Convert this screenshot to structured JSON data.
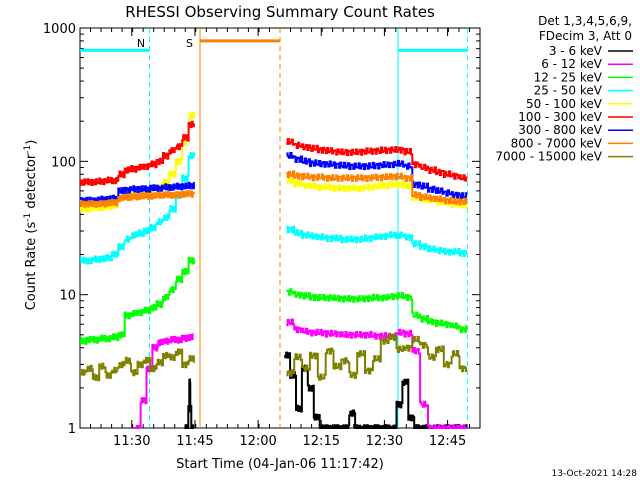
{
  "chart_data": {
    "type": "line",
    "title": "RHESSI Observing Summary Count Rates",
    "ylabel_main": "Count Rate (s",
    "ylabel_sup1": "-1",
    "ylabel_mid": " detector",
    "ylabel_sup2": "-1",
    "ylabel_end": ")",
    "xlabel": "Start Time (04-Jan-06 11:17:42)",
    "yscale": "log",
    "ylim": [
      1,
      1000
    ],
    "xlim_minutes": [
      0,
      95
    ],
    "x_ticks": [
      {
        "label": "11:30",
        "m": 12.3
      },
      {
        "label": "11:45",
        "m": 27.3
      },
      {
        "label": "12:00",
        "m": 42.3
      },
      {
        "label": "12:15",
        "m": 57.3
      },
      {
        "label": "12:30",
        "m": 72.3
      },
      {
        "label": "12:45",
        "m": 87.3
      }
    ],
    "y_ticks": [
      {
        "label": "1",
        "v": 1
      },
      {
        "label": "10",
        "v": 10
      },
      {
        "label": "100",
        "v": 100
      },
      {
        "label": "1000",
        "v": 1000
      }
    ],
    "legend_header": [
      "Det 1,3,4,5,6,9,",
      "FDecim 3, Att 0"
    ],
    "legend_position": "right",
    "series": [
      {
        "name": "3 - 6 keV",
        "color": "#000000",
        "segments": [
          {
            "start": 25.0,
            "end": 26.9,
            "values": [
              1,
              1,
              1,
              1.4,
              2.2,
              1.4,
              1,
              1
            ]
          },
          {
            "start": 48.5,
            "end": 92.0,
            "values": [
              3.5,
              2.5,
              1.4,
              2.8,
              2.0,
              1.2,
              1,
              1,
              1,
              1,
              1,
              1.3,
              1,
              1,
              1,
              1,
              1,
              1,
              1,
              1.5,
              2.2,
              1.2,
              1,
              1,
              1,
              1,
              1,
              1,
              1,
              1,
              1
            ]
          }
        ]
      },
      {
        "name": "6 - 12 keV",
        "color": "#ff00ff",
        "segments": [
          {
            "start": 13.0,
            "end": 27.0,
            "values": [
              1,
              1.6,
              2.8,
              4.0,
              4.4,
              4.5,
              4.6,
              4.6,
              4.7,
              4.8
            ]
          },
          {
            "start": 49.0,
            "end": 92.0,
            "values": [
              6.2,
              5.5,
              5.3,
              5.2,
              5.2,
              5.1,
              5.1,
              5.0,
              5.0,
              5.0,
              5.0,
              4.9,
              4.9,
              4.9,
              5.2,
              5.1,
              3.8,
              1.5,
              1,
              1,
              1,
              1,
              1
            ]
          }
        ]
      },
      {
        "name": "12 - 25 keV",
        "color": "#00ff00",
        "segments": [
          {
            "start": 0,
            "end": 27.3,
            "values": [
              4.5,
              4.6,
              4.6,
              4.7,
              4.7,
              4.8,
              5.0,
              7.0,
              7.2,
              7.4,
              7.6,
              8.0,
              8.5,
              9.5,
              11,
              13,
              15,
              18
            ]
          },
          {
            "start": 49.0,
            "end": 92.0,
            "values": [
              10.5,
              10.0,
              9.8,
              9.6,
              9.5,
              9.5,
              9.4,
              9.3,
              9.3,
              9.3,
              9.4,
              9.5,
              9.5,
              9.7,
              9.8,
              9.6,
              7.0,
              6.6,
              6.3,
              6.1,
              6.0,
              5.8,
              5.5
            ]
          }
        ]
      },
      {
        "name": "25 - 50 keV",
        "color": "#00ffff",
        "segments": [
          {
            "start": 0,
            "end": 27.3,
            "values": [
              18,
              18,
              18.5,
              18.5,
              19,
              20,
              23,
              26,
              28,
              29,
              30,
              32,
              35,
              38,
              44,
              55,
              75,
              110
            ]
          },
          {
            "start": 49.0,
            "end": 92.0,
            "values": [
              31,
              29,
              28,
              27.5,
              27,
              26.5,
              26.5,
              26,
              26,
              26,
              26.5,
              27,
              27.5,
              28,
              28,
              27,
              24,
              23,
              22,
              21.5,
              21,
              21,
              20.5
            ]
          }
        ]
      },
      {
        "name": "50 - 100 keV",
        "color": "#ffff00",
        "segments": [
          {
            "start": 0,
            "end": 27.3,
            "values": [
              44,
              44,
              45,
              45,
              46,
              47,
              53,
              55,
              56,
              57,
              58,
              60,
              64,
              70,
              80,
              100,
              140,
              220
            ]
          },
          {
            "start": 49.0,
            "end": 92.0,
            "values": [
              72,
              68,
              66,
              65,
              64,
              64,
              63,
              63,
              63,
              63,
              64,
              65,
              66,
              67,
              67,
              65,
              54,
              52,
              51,
              50,
              49,
              48,
              47
            ]
          }
        ]
      },
      {
        "name": "100 - 300 keV",
        "color": "#ff0000",
        "segments": [
          {
            "start": 0,
            "end": 27.3,
            "values": [
              70,
              70,
              70,
              71,
              72,
              72,
              80,
              86,
              88,
              90,
              92,
              95,
              100,
              110,
              120,
              130,
              150,
              190
            ]
          },
          {
            "start": 49.0,
            "end": 92.0,
            "values": [
              140,
              132,
              128,
              125,
              122,
              120,
              118,
              117,
              117,
              118,
              119,
              120,
              121,
              122,
              122,
              118,
              95,
              90,
              86,
              83,
              80,
              78,
              75
            ]
          }
        ]
      },
      {
        "name": "300 - 800 keV",
        "color": "#0000ff",
        "segments": [
          {
            "start": 0,
            "end": 27.3,
            "values": [
              51,
              51,
              51,
              52,
              52,
              53,
              60,
              61,
              62,
              62,
              62,
              63,
              63,
              64,
              64,
              65,
              65,
              66
            ]
          },
          {
            "start": 49.0,
            "end": 92.0,
            "values": [
              110,
              104,
              100,
              97,
              96,
              95,
              94,
              93,
              92,
              92,
              92,
              93,
              94,
              95,
              96,
              92,
              67,
              65,
              62,
              60,
              58,
              56,
              55
            ]
          }
        ]
      },
      {
        "name": "800 - 7000 keV",
        "color": "#ff8000",
        "segments": [
          {
            "start": 0,
            "end": 27.3,
            "values": [
              48,
              48,
              48,
              48,
              49,
              49,
              53,
              54,
              54,
              55,
              55,
              55,
              56,
              56,
              56,
              56,
              57,
              57
            ]
          },
          {
            "start": 49.0,
            "end": 92.0,
            "values": [
              80,
              78,
              77,
              76,
              76,
              75,
              75,
              75,
              75,
              75,
              75,
              76,
              76,
              77,
              77,
              75,
              56,
              54,
              53,
              52,
              51,
              50,
              50
            ]
          }
        ]
      },
      {
        "name": "7000 - 15000 keV",
        "color": "#808000",
        "segments": [
          {
            "start": 0,
            "end": 27.3,
            "values": [
              2.6,
              2.8,
              2.4,
              2.9,
              2.5,
              2.7,
              3.0,
              3.2,
              2.6,
              3.0,
              3.2,
              2.8,
              3.1,
              3.5,
              3.4,
              3.7,
              3.0,
              3.3
            ]
          },
          {
            "start": 49.0,
            "end": 92.0,
            "values": [
              2.6,
              3.4,
              2.8,
              3.5,
              2.4,
              3.8,
              2.9,
              3.2,
              2.5,
              3.6,
              2.7,
              3.3,
              4.5,
              4.8,
              3.9,
              4.0,
              4.6,
              4.2,
              3.4,
              3.9,
              3.0,
              3.6,
              2.8
            ]
          }
        ]
      }
    ],
    "annotations": [
      {
        "label": "N",
        "color": "#00ffff",
        "m": 14.5
      },
      {
        "label": "S",
        "color": "#ff8000",
        "m": 26.0
      }
    ],
    "flags": [
      {
        "color": "#00ffff",
        "start": 0,
        "end": 16.5,
        "level": 680
      },
      {
        "color": "#00ffff",
        "start": 75.5,
        "end": 92.0,
        "level": 680
      },
      {
        "color": "#ff8000",
        "start": 28.5,
        "end": 47.5,
        "level": 800
      }
    ],
    "vlines": [
      {
        "m": 16.5,
        "color": "#00ffff",
        "dash": true
      },
      {
        "m": 75.5,
        "color": "#00ffff",
        "dash": false
      },
      {
        "m": 92.0,
        "color": "#00ffff",
        "dash": true
      },
      {
        "m": 28.5,
        "color": "#ff8000",
        "dash": false
      },
      {
        "m": 47.5,
        "color": "#ff8000",
        "dash": true
      }
    ]
  },
  "footer": {
    "date": "13-Oct-2021 14:28"
  }
}
